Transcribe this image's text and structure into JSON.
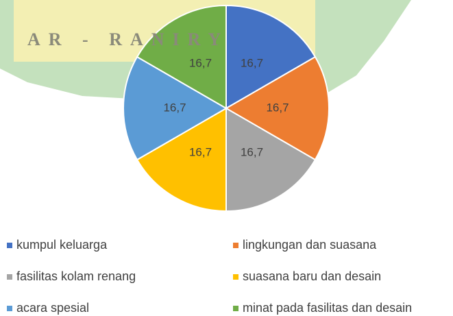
{
  "chart_data": {
    "type": "pie",
    "watermark": "AR - RANIRY",
    "categories": [
      "kumpul keluarga",
      "lingkungan dan suasana",
      "fasilitas kolam renang",
      "suasana baru dan desain",
      "acara spesial",
      "minat pada fasilitas dan desain"
    ],
    "values": [
      16.7,
      16.7,
      16.7,
      16.7,
      16.7,
      16.7
    ],
    "value_labels": [
      "16,7",
      "16,7",
      "16,7",
      "16,7",
      "16,7",
      "16,7"
    ],
    "colors": [
      "#4472c4",
      "#ed7d31",
      "#a5a5a5",
      "#ffc000",
      "#5b9bd5",
      "#70ad47"
    ],
    "legend": "bottom"
  }
}
